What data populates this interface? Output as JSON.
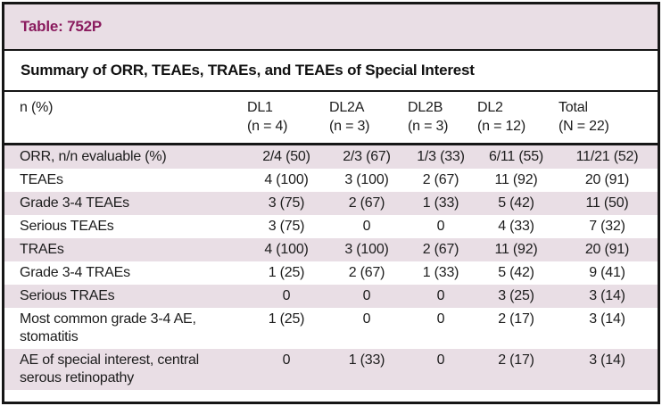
{
  "table": {
    "tag": "Table: 752P",
    "subtitle": "Summary of ORR, TEAEs, TRAEs, and TEAEs of Special Interest",
    "colors": {
      "shade_pink": "#e9dee5",
      "tag_text": "#8a1b5e",
      "border": "#161616"
    },
    "columns": [
      {
        "label": "n (%)",
        "sub": ""
      },
      {
        "label": "DL1",
        "sub": "(n = 4)"
      },
      {
        "label": "DL2A",
        "sub": "(n = 3)"
      },
      {
        "label": "DL2B",
        "sub": "(n = 3)"
      },
      {
        "label": "DL2",
        "sub": "(n = 12)"
      },
      {
        "label": "Total",
        "sub": "(N = 22)"
      }
    ],
    "rows": [
      {
        "label": "ORR, n/n evaluable (%)",
        "shaded": true,
        "values": [
          "2/4 (50)",
          "2/3 (67)",
          "1/3 (33)",
          "6/11 (55)",
          "11/21 (52)"
        ]
      },
      {
        "label": "TEAEs",
        "shaded": false,
        "values": [
          "4 (100)",
          "3 (100)",
          "2 (67)",
          "11 (92)",
          "20 (91)"
        ]
      },
      {
        "label": "Grade 3-4 TEAEs",
        "shaded": true,
        "values": [
          "3 (75)",
          "2 (67)",
          "1 (33)",
          "5 (42)",
          "11 (50)"
        ]
      },
      {
        "label": "Serious TEAEs",
        "shaded": false,
        "values": [
          "3 (75)",
          "0",
          "0",
          "4 (33)",
          "7 (32)"
        ]
      },
      {
        "label": "TRAEs",
        "shaded": true,
        "values": [
          "4 (100)",
          "3 (100)",
          "2 (67)",
          "11 (92)",
          "20 (91)"
        ]
      },
      {
        "label": "Grade 3-4 TRAEs",
        "shaded": false,
        "values": [
          "1 (25)",
          "2 (67)",
          "1 (33)",
          "5 (42)",
          "9 (41)"
        ]
      },
      {
        "label": "Serious TRAEs",
        "shaded": true,
        "values": [
          "0",
          "0",
          "0",
          "3 (25)",
          "3 (14)"
        ]
      },
      {
        "label": "Most common grade 3-4 AE, stomatitis",
        "shaded": false,
        "values": [
          "1 (25)",
          "0",
          "0",
          "2 (17)",
          "3 (14)"
        ]
      },
      {
        "label": "AE of special interest, central serous retinopathy",
        "shaded": true,
        "values": [
          "0",
          "1 (33)",
          "0",
          "2 (17)",
          "3 (14)"
        ]
      }
    ]
  }
}
